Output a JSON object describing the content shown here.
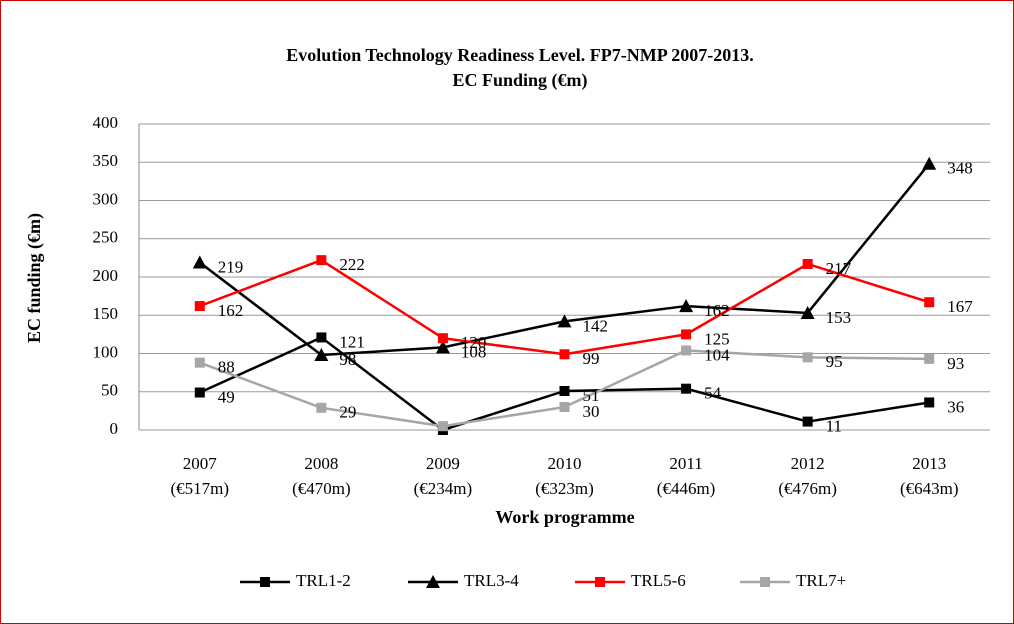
{
  "chart_data": {
    "type": "line",
    "title": [
      "Evolution Technology Readiness Level. FP7-NMP 2007-2013.",
      "EC Funding (€m)"
    ],
    "y_label": "EC funding (€m)",
    "x_label": "Work programme",
    "categories": [
      [
        "2007",
        "(€517m)"
      ],
      [
        "2008",
        "(€470m)"
      ],
      [
        "2009",
        "(€234m)"
      ],
      [
        "2010",
        "(€323m)"
      ],
      [
        "2011",
        "(€446m)"
      ],
      [
        "2012",
        "(€476m)"
      ],
      [
        "2013",
        "(€643m)"
      ]
    ],
    "ylim": [
      0,
      400
    ],
    "yticks": [
      0,
      50,
      100,
      150,
      200,
      250,
      300,
      350,
      400
    ],
    "grid": true,
    "legend": "bottom",
    "series": [
      {
        "name": "TRL1-2",
        "color": "#000000",
        "marker": "square",
        "values": [
          49,
          121,
          0,
          51,
          54,
          11,
          36
        ],
        "value_labels": [
          "49",
          "121",
          null,
          "51",
          "54",
          "11",
          "36"
        ]
      },
      {
        "name": "TRL3-4",
        "color": "#000000",
        "marker": "triangle",
        "values": [
          219,
          98,
          108,
          142,
          162,
          153,
          348
        ]
      },
      {
        "name": "TRL5-6",
        "color": "#ff0000",
        "marker": "square",
        "values": [
          162,
          222,
          120,
          99,
          125,
          217,
          167
        ]
      },
      {
        "name": "TRL7+",
        "color": "#a6a6a6",
        "marker": "square",
        "values": [
          88,
          29,
          5,
          30,
          104,
          95,
          93
        ],
        "value_labels": [
          "88",
          "29",
          null,
          "30",
          "104",
          "95",
          "93"
        ]
      }
    ]
  }
}
